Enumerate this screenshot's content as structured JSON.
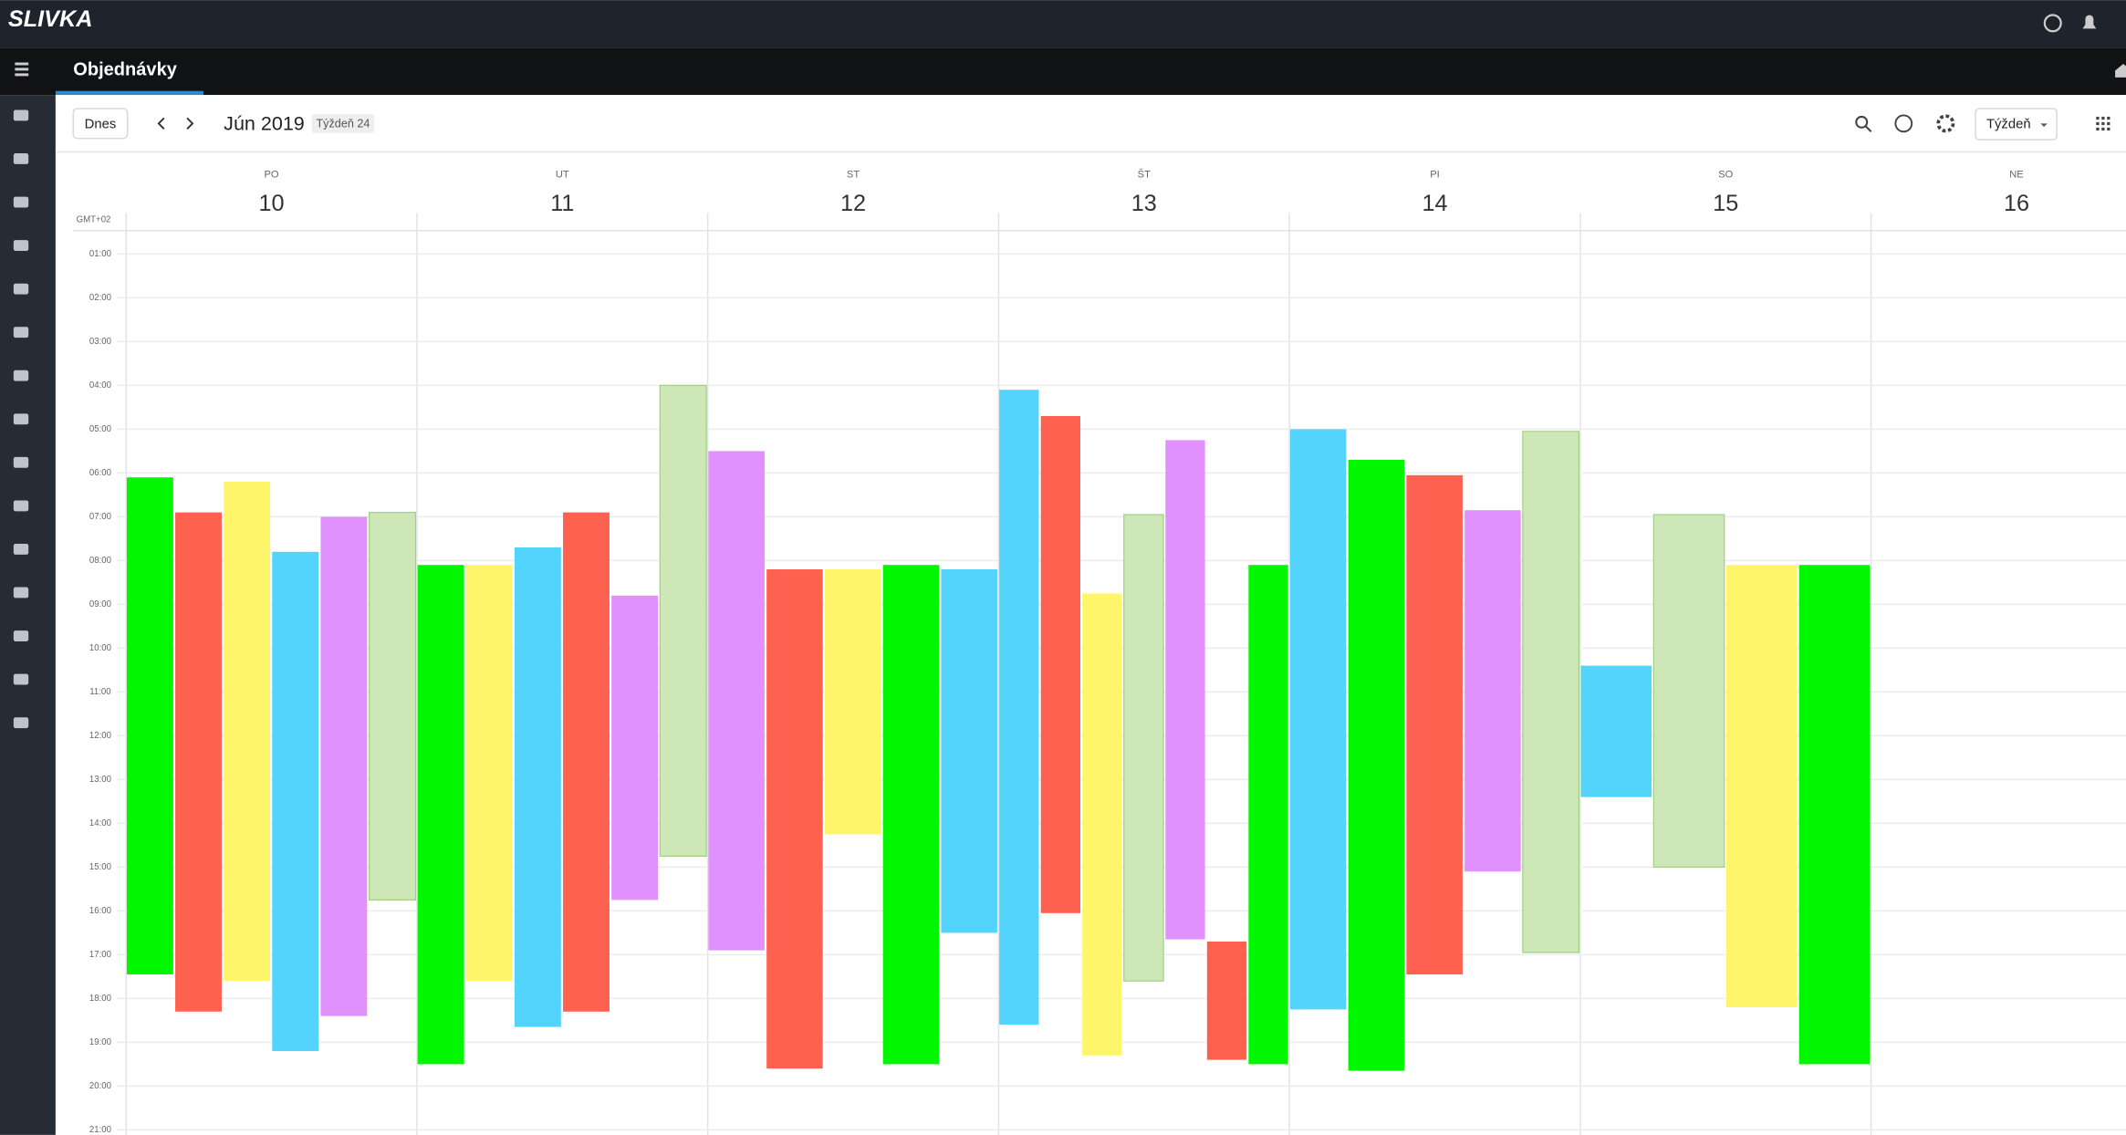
{
  "header": {
    "logo": "SLIVKA",
    "tab": "Objednávky"
  },
  "toolbar": {
    "today": "Dnes",
    "month": "Jún 2019",
    "week_badge": "Týždeň 24",
    "view": "Týždeň"
  },
  "calendar": {
    "timezone": "GMT+02",
    "days": [
      {
        "name": "PO",
        "date": 10
      },
      {
        "name": "UT",
        "date": 11
      },
      {
        "name": "ST",
        "date": 12
      },
      {
        "name": "ŠT",
        "date": 13
      },
      {
        "name": "PI",
        "date": 14
      },
      {
        "name": "SO",
        "date": 15
      },
      {
        "name": "NE",
        "date": 16
      }
    ],
    "hours": [
      "01:00",
      "02:00",
      "03:00",
      "04:00",
      "05:00",
      "06:00",
      "07:00",
      "08:00",
      "09:00",
      "10:00",
      "11:00",
      "12:00",
      "13:00",
      "14:00",
      "15:00",
      "16:00",
      "17:00",
      "18:00",
      "19:00",
      "20:00",
      "21:00"
    ],
    "events": [
      {
        "day": 0,
        "start": 6.1,
        "end": 17.45,
        "color": "#00f700"
      },
      {
        "day": 0,
        "start": 6.9,
        "end": 18.3,
        "color": "#ff6150"
      },
      {
        "day": 0,
        "start": 6.2,
        "end": 17.6,
        "color": "#fff56b"
      },
      {
        "day": 0,
        "start": 7.8,
        "end": 19.2,
        "color": "#52d4fd"
      },
      {
        "day": 0,
        "start": 7.0,
        "end": 18.4,
        "color": "#e191fd"
      },
      {
        "day": 0,
        "start": 6.9,
        "end": 15.75,
        "color": "#cde7b6"
      },
      {
        "day": 1,
        "start": 8.1,
        "end": 19.5,
        "color": "#00f700"
      },
      {
        "day": 1,
        "start": 8.1,
        "end": 17.6,
        "color": "#fff56b"
      },
      {
        "day": 1,
        "start": 7.7,
        "end": 18.65,
        "color": "#52d4fd"
      },
      {
        "day": 1,
        "start": 6.9,
        "end": 18.3,
        "color": "#ff6150"
      },
      {
        "day": 1,
        "start": 8.8,
        "end": 15.75,
        "color": "#e191fd"
      },
      {
        "day": 1,
        "start": 4.0,
        "end": 14.75,
        "color": "#cde7b6"
      },
      {
        "day": 2,
        "start": 5.5,
        "end": 16.9,
        "color": "#e191fd"
      },
      {
        "day": 2,
        "start": 8.2,
        "end": 19.6,
        "color": "#ff6150"
      },
      {
        "day": 2,
        "start": 8.2,
        "end": 14.25,
        "color": "#fff56b"
      },
      {
        "day": 2,
        "start": 8.1,
        "end": 19.5,
        "color": "#00f700"
      },
      {
        "day": 2,
        "start": 8.2,
        "end": 16.5,
        "color": "#52d4fd"
      },
      {
        "day": 3,
        "start": 4.1,
        "end": 18.6,
        "color": "#52d4fd"
      },
      {
        "day": 3,
        "start": 4.7,
        "end": 16.05,
        "color": "#ff6150"
      },
      {
        "day": 3,
        "start": 8.75,
        "end": 19.3,
        "color": "#fff56b"
      },
      {
        "day": 3,
        "start": 6.95,
        "end": 17.6,
        "color": "#cde7b6"
      },
      {
        "day": 3,
        "start": 5.25,
        "end": 16.65,
        "color": "#e191fd"
      },
      {
        "day": 3,
        "start": 16.7,
        "end": 19.4,
        "color": "#ff6150"
      },
      {
        "day": 3,
        "start": 8.1,
        "end": 19.5,
        "color": "#00f700"
      },
      {
        "day": 4,
        "start": 5.0,
        "end": 18.25,
        "color": "#52d4fd"
      },
      {
        "day": 4,
        "start": 5.7,
        "end": 19.65,
        "color": "#00f700"
      },
      {
        "day": 4,
        "start": 6.05,
        "end": 17.45,
        "color": "#ff6150"
      },
      {
        "day": 4,
        "start": 6.85,
        "end": 15.1,
        "color": "#e191fd"
      },
      {
        "day": 4,
        "start": 5.05,
        "end": 16.95,
        "color": "#cde7b6"
      },
      {
        "day": 5,
        "start": 10.4,
        "end": 13.4,
        "color": "#52d4fd"
      },
      {
        "day": 5,
        "start": 6.95,
        "end": 15.0,
        "color": "#cde7b6"
      },
      {
        "day": 5,
        "start": 8.1,
        "end": 18.2,
        "color": "#fff56b"
      },
      {
        "day": 5,
        "start": 8.1,
        "end": 19.5,
        "color": "#00f700"
      }
    ]
  }
}
